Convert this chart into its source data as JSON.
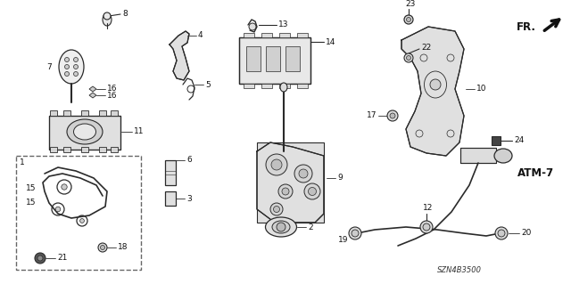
{
  "background_color": "#ffffff",
  "diagram_code": "SZN4B3500",
  "figsize": [
    6.4,
    3.19
  ],
  "dpi": 100,
  "line_color": "#2a2a2a",
  "label_color": "#111111",
  "lw": 0.8,
  "fontsize": 6.5
}
